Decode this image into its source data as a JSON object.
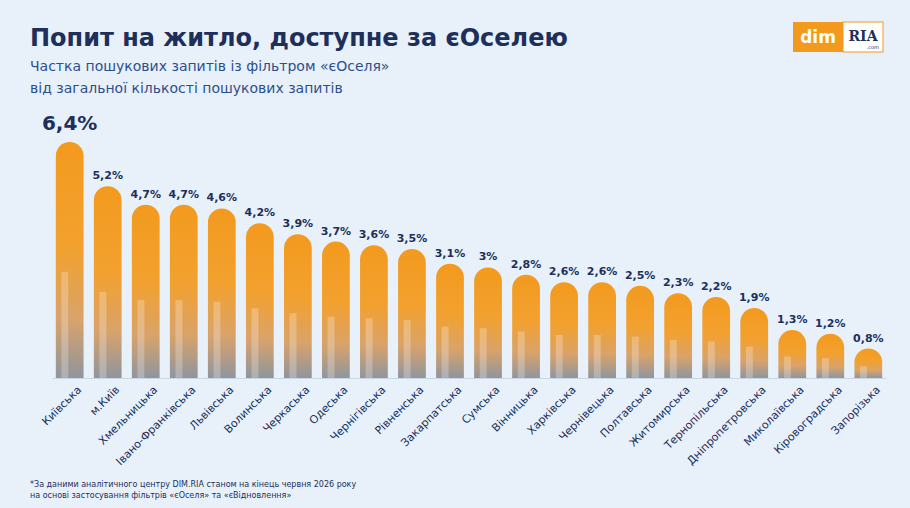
{
  "chart_data": {
    "type": "bar",
    "title": "Попит на житло, доступне за єОселею",
    "subtitle": [
      "Частка пошукових запитів із фільтром «єОселя»",
      "від загальної кількості пошукових запитів"
    ],
    "footnote": [
      "*За даними аналітичного центру DIM.RIA станом на кінець червня 2026 року",
      "на основі застосування фільтрів «єОселя» та «єВідновлення»"
    ],
    "annotations": [
      "dim",
      "RIA",
      ".com"
    ],
    "categories": [
      "Київська",
      "м.Київ",
      "Хмельницька",
      "Івано-Франківська",
      "Львівська",
      "Волинська",
      "Черкаська",
      "Одеська",
      "Чернігівська",
      "Рівненська",
      "Закарпатська",
      "Сумська",
      "Вінницька",
      "Харківська",
      "Чернівецька",
      "Полтавська",
      "Житомирська",
      "Тернопільська",
      "Дніпропетровська",
      "Миколаївська",
      "Кіровоградська",
      "Запорізька"
    ],
    "values": [
      6.4,
      5.2,
      4.7,
      4.7,
      4.6,
      4.2,
      3.9,
      3.7,
      3.6,
      3.5,
      3.1,
      3,
      2.8,
      2.6,
      2.6,
      2.5,
      2.3,
      2.2,
      1.9,
      1.3,
      1.2,
      0.8
    ],
    "value_labels": [
      "6,4%",
      "5,2%",
      "4,7%",
      "4,7%",
      "4,6%",
      "4,2%",
      "3,9%",
      "3,7%",
      "3,6%",
      "3,5%",
      "3,1%",
      "3%",
      "2,8%",
      "2,6%",
      "2,6%",
      "2,5%",
      "2,3%",
      "2,2%",
      "1,9%",
      "1,3%",
      "1,2%",
      "0,8%"
    ],
    "color": "#f39a1e",
    "ylim": [
      0,
      6.4
    ],
    "data_labels": true,
    "tick_labels": "x",
    "grid": false
  }
}
